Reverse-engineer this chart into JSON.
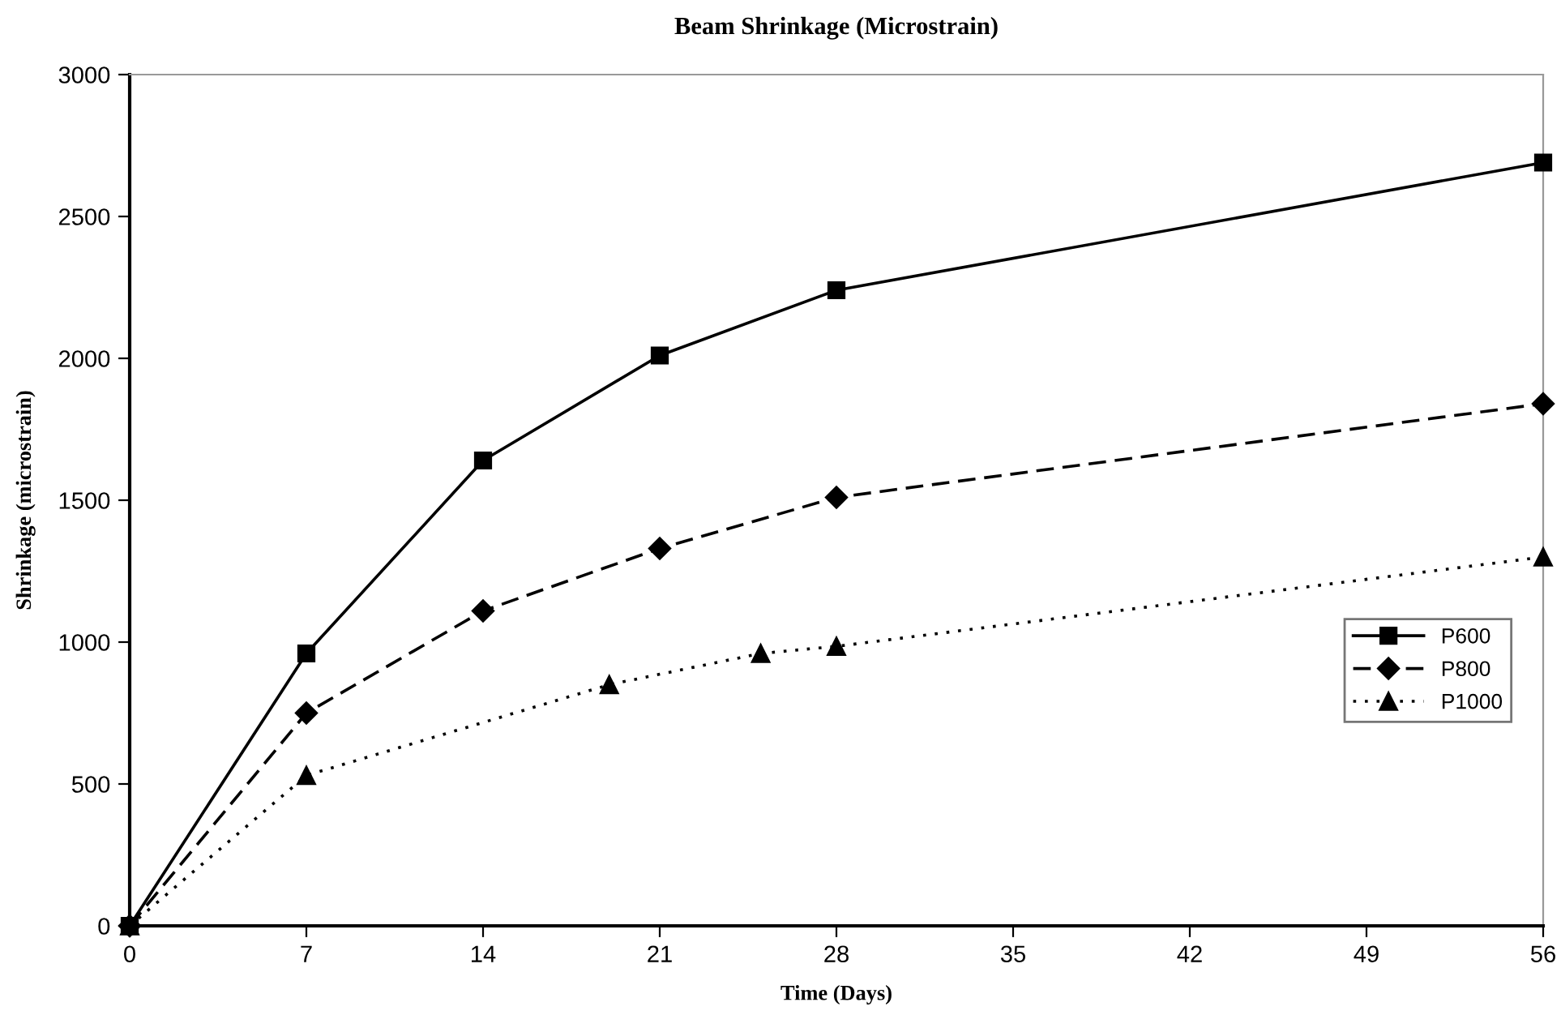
{
  "chart_data": {
    "type": "line",
    "title": "Beam Shrinkage (Microstrain)",
    "xlabel": "Time (Days)",
    "ylabel": "Shrinkage (microstrain)",
    "xlim": [
      0,
      56
    ],
    "xticks": [
      0,
      7,
      14,
      21,
      28,
      35,
      42,
      49,
      56
    ],
    "ylim": [
      0,
      3000
    ],
    "yticks": [
      0,
      500,
      1000,
      1500,
      2000,
      2500,
      3000
    ],
    "grid": false,
    "legend": "right",
    "series": [
      {
        "name": "P600",
        "color": "#000000",
        "marker": "square",
        "line_style": "solid",
        "x": [
          0,
          7,
          14,
          21,
          28,
          56
        ],
        "values": [
          0,
          960,
          1640,
          2010,
          2240,
          2690
        ]
      },
      {
        "name": "P800",
        "color": "#000000",
        "marker": "diamond",
        "line_style": "dashed",
        "x": [
          0,
          7,
          14,
          21,
          28,
          56
        ],
        "values": [
          0,
          750,
          1110,
          1330,
          1510,
          1840
        ]
      },
      {
        "name": "P1000",
        "color": "#000000",
        "marker": "triangle",
        "line_style": "dotted",
        "x": [
          0,
          7,
          19,
          25,
          28,
          56
        ],
        "values": [
          0,
          530,
          850,
          960,
          985,
          1300
        ]
      }
    ]
  }
}
